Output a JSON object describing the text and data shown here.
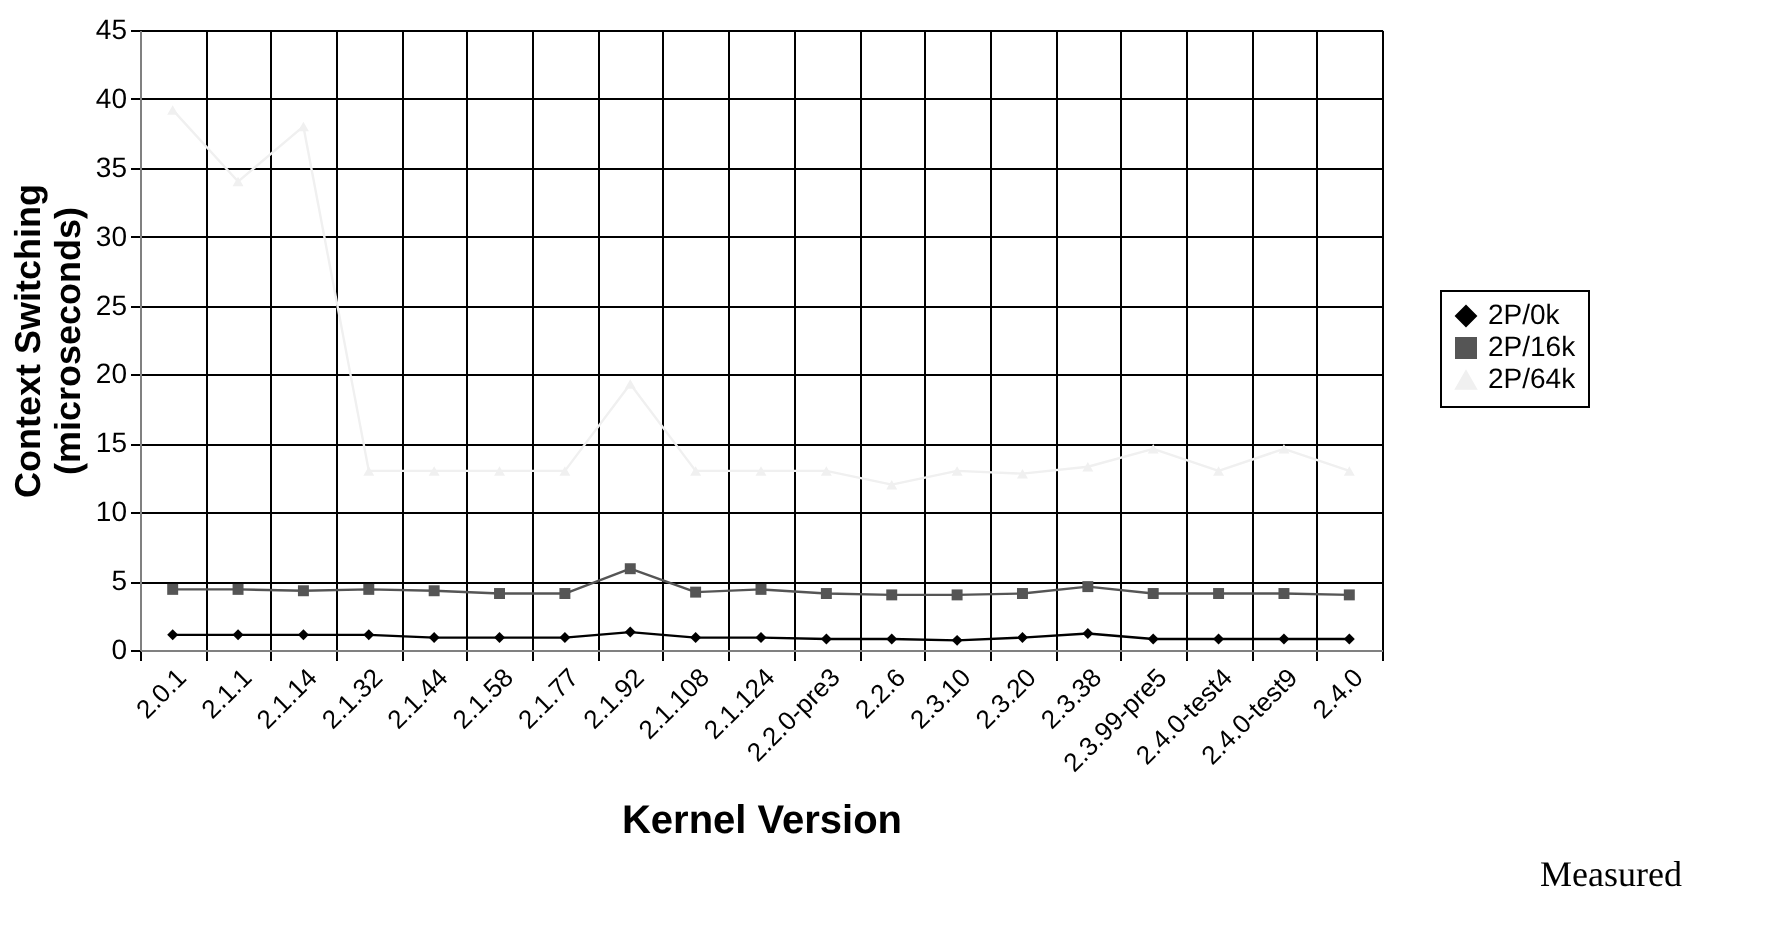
{
  "chart_data": {
    "type": "line",
    "xlabel": "Kernel Version",
    "ylabel": "Context Switching\n(microseconds)",
    "categories": [
      "2.0.1",
      "2.1.1",
      "2.1.14",
      "2.1.32",
      "2.1.44",
      "2.1.58",
      "2.1.77",
      "2.1.92",
      "2.1.108",
      "2.1.124",
      "2.2.0-pre3",
      "2.2.6",
      "2.3.10",
      "2.3.20",
      "2.3.38",
      "2.3.99-pre5",
      "2.4.0-test4",
      "2.4.0-test9",
      "2.4.0"
    ],
    "series": [
      {
        "name": "2P/0k",
        "color": "#000000",
        "marker": "diamond",
        "values": [
          1.1,
          1.1,
          1.1,
          1.1,
          0.9,
          0.9,
          0.9,
          1.3,
          0.9,
          0.9,
          0.8,
          0.8,
          0.7,
          0.9,
          1.2,
          0.8,
          0.8,
          0.8,
          0.8
        ]
      },
      {
        "name": "2P/16k",
        "color": "#555555",
        "marker": "square",
        "values": [
          4.4,
          4.4,
          4.3,
          4.4,
          4.3,
          4.1,
          4.1,
          5.9,
          4.2,
          4.4,
          4.1,
          4.0,
          4.0,
          4.1,
          4.6,
          4.1,
          4.1,
          4.1,
          4.0
        ]
      },
      {
        "name": "2P/64k",
        "color": "#f0f0f0",
        "marker": "triangle",
        "values": [
          39.2,
          34,
          38,
          13,
          13,
          13,
          13,
          19.3,
          13,
          13,
          13,
          12,
          13,
          12.8,
          13.3,
          14.6,
          13,
          14.6,
          13
        ]
      }
    ],
    "ylim": [
      0,
      45
    ],
    "yticks": [
      0,
      5,
      10,
      15,
      20,
      25,
      30,
      35,
      40,
      45
    ],
    "grid": true,
    "legend": "right",
    "annotations": [
      "Measured"
    ]
  }
}
